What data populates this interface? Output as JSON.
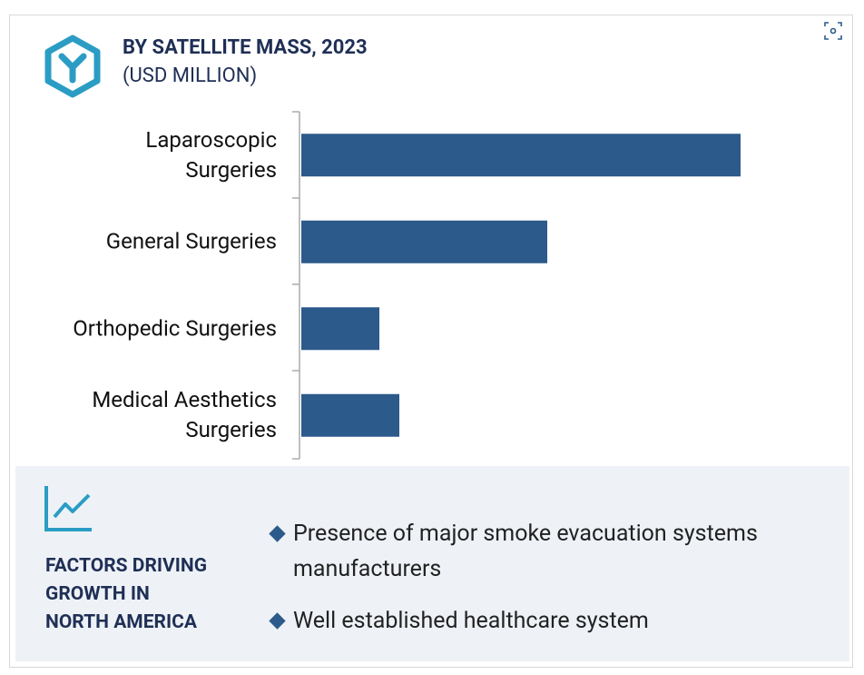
{
  "chart_data": {
    "type": "bar",
    "orientation": "horizontal",
    "title": "BY SATELLITE MASS, 2023",
    "subtitle": "(USD MILLION)",
    "categories": [
      "Laparoscopic\nSurgeries",
      "General Surgeries",
      "Orthopedic Surgeries",
      "Medical Aesthetics\nSurgeries"
    ],
    "values": [
      484,
      271,
      86,
      108
    ],
    "color": "#2c5a8a"
  },
  "panel": {
    "heading": "FACTORS DRIVING\nGROWTH IN\nNORTH AMERICA",
    "bullets": [
      "Presence of major smoke evacuation systems manufacturers",
      "Well established healthcare system"
    ]
  }
}
